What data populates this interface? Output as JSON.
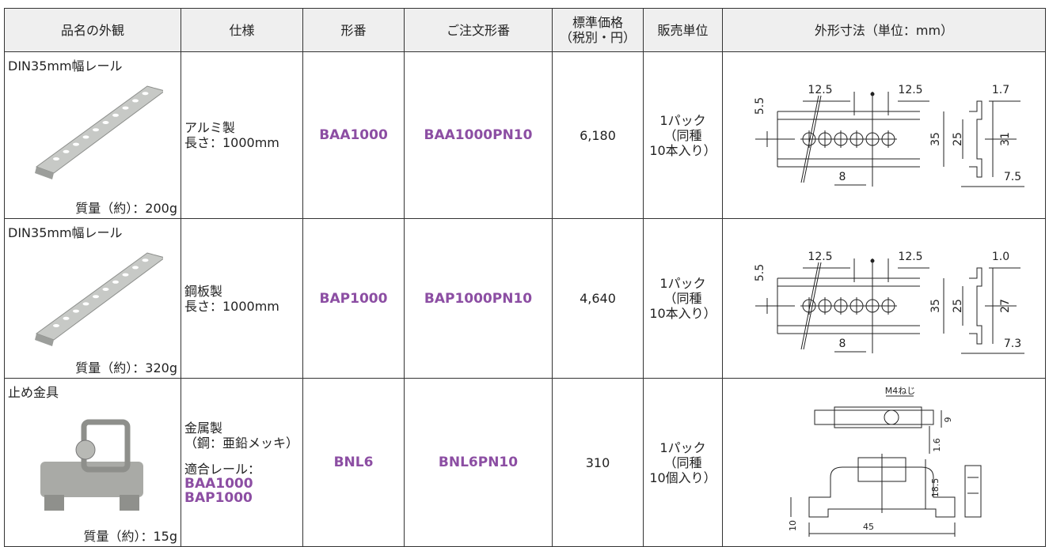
{
  "table": {
    "headers": [
      "品名の外観",
      "仕様",
      "形番",
      "ご注文形番",
      [
        "標準価格",
        "（税別・円）"
      ],
      "販売単位",
      "外形寸法（単位：mm）"
    ],
    "rows": [
      {
        "name": "DIN35mm幅レール",
        "weight": "質量（約）：200g",
        "spec": [
          "アルミ製",
          "長さ：1000mm"
        ],
        "model": "BAA1000",
        "order_model": "BAA1000PN10",
        "price": "6,180",
        "unit": [
          "1パック",
          "（同種",
          "10本入り）"
        ],
        "dims": [
          "12.5",
          "12.5",
          "1.7",
          "5.5",
          "35",
          "25",
          "31",
          "8",
          "7.5"
        ]
      },
      {
        "name": "DIN35mm幅レール",
        "weight": "質量（約）：320g",
        "spec": [
          "鋼板製",
          "長さ：1000mm"
        ],
        "model": "BAP1000",
        "order_model": "BAP1000PN10",
        "price": "4,640",
        "unit": [
          "1パック",
          "（同種",
          "10本入り）"
        ],
        "dims": [
          "12.5",
          "12.5",
          "1.0",
          "5.5",
          "35",
          "25",
          "27",
          "8",
          "7.3"
        ]
      },
      {
        "name": "止め金具",
        "weight": "質量（約）：15g",
        "spec": [
          "金属製",
          "（鋼：亜鉛メッキ）"
        ],
        "compat_label": "適合レール：",
        "compat": [
          "BAA1000",
          "BAP1000"
        ],
        "model": "BNL6",
        "order_model": "BNL6PN10",
        "price": "310",
        "unit": [
          "1パック",
          "（同種",
          "10個入り）"
        ],
        "dims": [
          "M4ねじ",
          "9",
          "1.6",
          "18.5",
          "10",
          "45"
        ]
      }
    ]
  }
}
